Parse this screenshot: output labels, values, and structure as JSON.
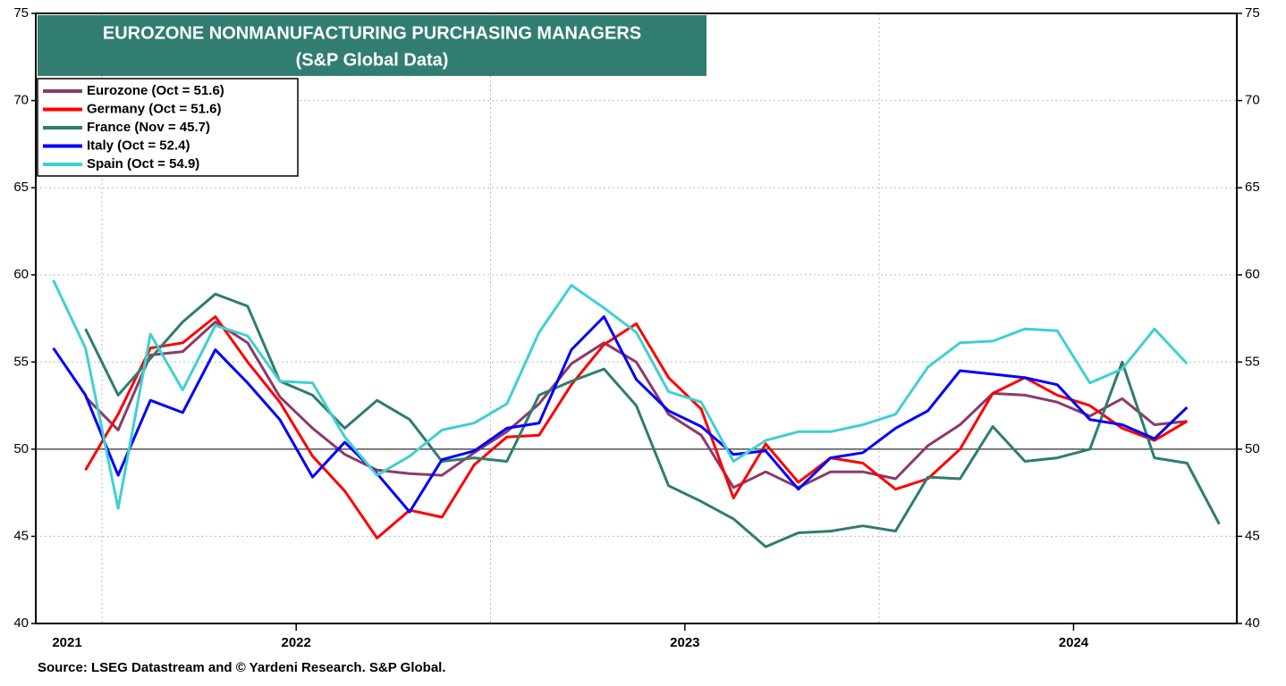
{
  "chart_data": {
    "type": "line",
    "title": "EUROZONE NONMANUFACTURING PURCHASING MANAGERS",
    "subtitle": "(S&P Global Data)",
    "source": "Source: LSEG Datastream and © Yardeni Research. S&P Global.",
    "x": [
      2021.375,
      2021.458,
      2021.542,
      2021.625,
      2021.708,
      2021.792,
      2021.875,
      2021.958,
      2022.042,
      2022.125,
      2022.208,
      2022.292,
      2022.375,
      2022.458,
      2022.542,
      2022.625,
      2022.708,
      2022.792,
      2022.875,
      2022.958,
      2023.042,
      2023.125,
      2023.208,
      2023.292,
      2023.375,
      2023.458,
      2023.542,
      2023.625,
      2023.708,
      2023.792,
      2023.875,
      2023.958,
      2024.042,
      2024.125,
      2024.208,
      2024.292,
      2024.375
    ],
    "xlim": [
      2021.33,
      2024.42
    ],
    "xticks": [
      2021,
      2022,
      2023,
      2024
    ],
    "ylim": [
      40,
      75
    ],
    "yticks": [
      40,
      45,
      50,
      55,
      60,
      65,
      70,
      75
    ],
    "hline": 50,
    "grid": true,
    "legend": "upper left",
    "series": [
      {
        "name": "Eurozone (Oct  = 51.6)",
        "color": "#8b3a6b",
        "values": [
          null,
          53.0,
          51.1,
          55.4,
          55.6,
          57.3,
          56.1,
          53.0,
          51.2,
          49.7,
          48.8,
          48.6,
          48.5,
          49.8,
          51.0,
          52.6,
          54.9,
          56.1,
          55.0,
          52.0,
          50.8,
          47.8,
          48.7,
          47.8,
          48.7,
          48.7,
          48.3,
          50.2,
          51.4,
          53.2,
          53.1,
          52.7,
          51.9,
          52.9,
          51.4,
          51.6,
          null
        ]
      },
      {
        "name": "Germany (Oct  = 51.6)",
        "color": "#ff0000",
        "values": [
          null,
          48.8,
          52.0,
          55.8,
          56.1,
          57.6,
          55.0,
          52.7,
          49.6,
          47.6,
          44.9,
          46.5,
          46.1,
          49.1,
          50.7,
          50.8,
          53.7,
          56.0,
          57.2,
          54.1,
          52.3,
          47.2,
          50.3,
          48.1,
          49.5,
          49.2,
          47.7,
          48.3,
          50.0,
          53.2,
          54.1,
          53.1,
          52.5,
          51.2,
          50.5,
          51.6,
          null
        ]
      },
      {
        "name": "France (Nov  = 45.7)",
        "color": "#2e7d6f",
        "values": [
          null,
          56.9,
          53.1,
          55.2,
          57.3,
          58.9,
          58.2,
          53.9,
          53.1,
          51.2,
          52.8,
          51.7,
          49.3,
          49.5,
          49.3,
          53.1,
          53.9,
          54.6,
          52.5,
          47.9,
          47.0,
          46.0,
          44.4,
          45.2,
          45.3,
          45.6,
          45.3,
          48.4,
          48.3,
          51.3,
          49.3,
          49.5,
          50.0,
          55.0,
          49.5,
          49.2,
          45.7
        ]
      },
      {
        "name": "Italy (Oct  = 52.4)",
        "color": "#0000ff",
        "values": [
          55.8,
          53.1,
          48.5,
          52.8,
          52.1,
          55.7,
          53.8,
          51.7,
          48.4,
          50.4,
          48.6,
          46.4,
          49.4,
          49.9,
          51.2,
          51.5,
          55.7,
          57.6,
          54.0,
          52.2,
          51.3,
          49.7,
          49.9,
          47.7,
          49.5,
          49.8,
          51.2,
          52.2,
          54.5,
          54.3,
          54.1,
          53.7,
          51.7,
          51.4,
          50.6,
          52.4,
          null
        ]
      },
      {
        "name": "Spain (Oct  = 54.9)",
        "color": "#40d0d0",
        "values": [
          59.7,
          55.8,
          46.6,
          56.6,
          53.4,
          57.1,
          56.5,
          53.9,
          53.8,
          50.7,
          48.5,
          49.6,
          51.1,
          51.5,
          52.6,
          56.7,
          59.4,
          58.1,
          56.7,
          53.3,
          52.7,
          49.3,
          50.5,
          51.0,
          51.0,
          51.4,
          52.0,
          54.7,
          56.1,
          56.2,
          56.9,
          56.8,
          53.8,
          54.6,
          56.9,
          54.9,
          null
        ]
      }
    ]
  }
}
